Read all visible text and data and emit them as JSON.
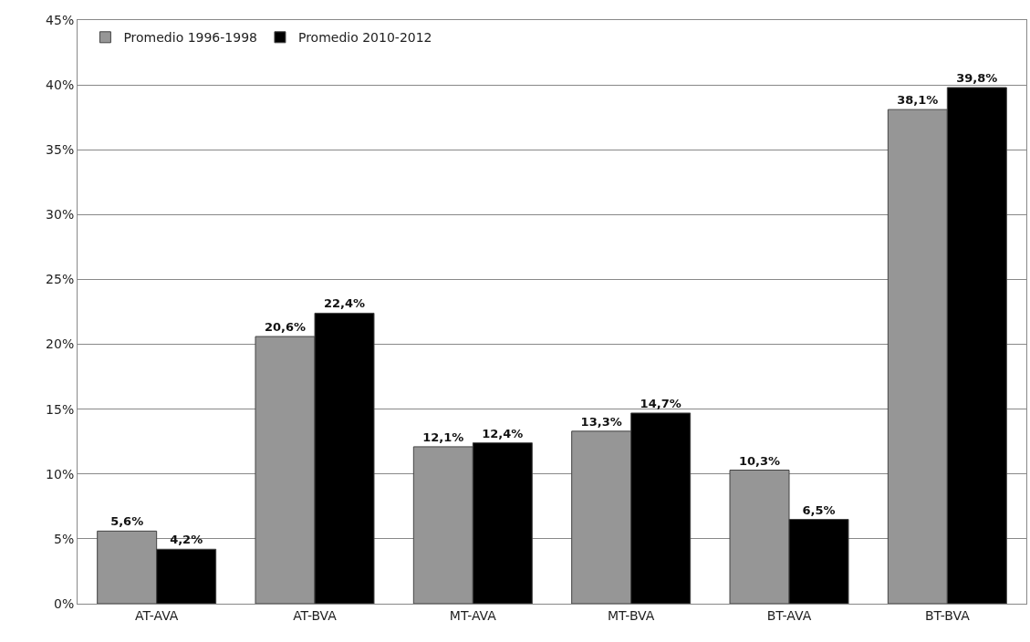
{
  "chart_data": {
    "type": "bar",
    "categories": [
      "AT-AVA",
      "AT-BVA",
      "MT-AVA",
      "MT-BVA",
      "BT-AVA",
      "BT-BVA"
    ],
    "series": [
      {
        "name": "Promedio 1996-1998",
        "color": "#969696",
        "values": [
          5.6,
          20.6,
          12.1,
          13.3,
          10.3,
          38.1
        ],
        "value_labels": [
          "5,6%",
          "20,6%",
          "12,1%",
          "13,3%",
          "10,3%",
          "38,1%"
        ]
      },
      {
        "name": "Promedio 2010-2012",
        "color": "#000000",
        "values": [
          4.2,
          22.4,
          12.4,
          14.7,
          6.5,
          39.8
        ],
        "value_labels": [
          "4,2%",
          "22,4%",
          "12,4%",
          "14,7%",
          "6,5%",
          "39,8%"
        ]
      }
    ],
    "ylim": [
      0,
      45
    ],
    "yticks": [
      {
        "value": 0,
        "label": "0%"
      },
      {
        "value": 5,
        "label": "5%"
      },
      {
        "value": 10,
        "label": "10%"
      },
      {
        "value": 15,
        "label": "15%"
      },
      {
        "value": 20,
        "label": "20%"
      },
      {
        "value": 25,
        "label": "25%"
      },
      {
        "value": 30,
        "label": "30%"
      },
      {
        "value": 35,
        "label": "35%"
      },
      {
        "value": 40,
        "label": "40%"
      },
      {
        "value": 45,
        "label": "45%"
      }
    ],
    "grid": "y",
    "legend": "top left"
  }
}
